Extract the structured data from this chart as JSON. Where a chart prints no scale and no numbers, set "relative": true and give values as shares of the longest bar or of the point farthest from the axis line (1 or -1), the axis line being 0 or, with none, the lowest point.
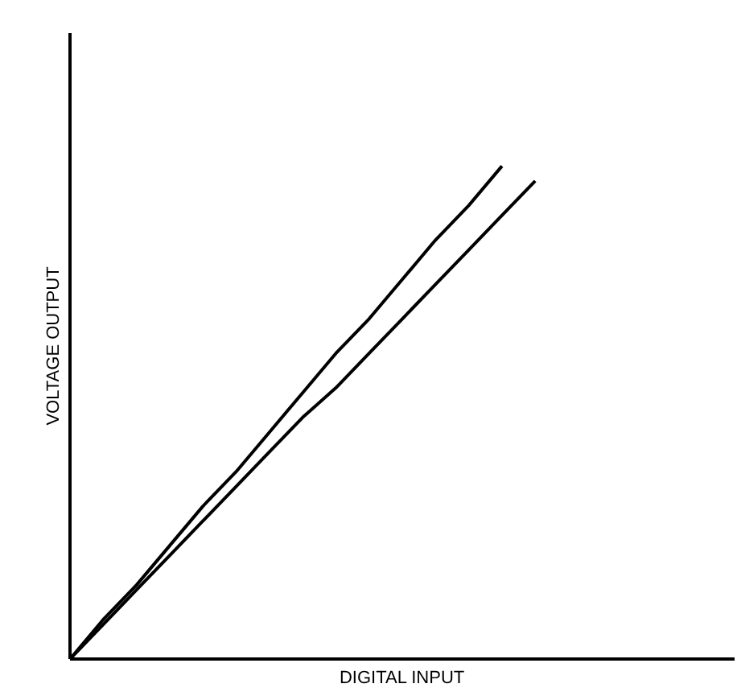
{
  "chart_data": {
    "type": "line",
    "relative": true,
    "xlabel": "DIGITAL INPUT",
    "ylabel": "VOLTAGE OUTPUT",
    "categories": [
      null,
      null,
      null,
      null,
      null,
      null,
      null,
      null,
      null,
      null,
      null,
      null,
      null,
      null,
      null,
      null,
      null,
      null,
      null,
      null,
      null
    ],
    "series": [
      {
        "color": "#000000",
        "values": [
          0,
          0.08,
          0.15,
          0.23,
          0.31,
          0.38,
          0.46,
          0.54,
          0.62,
          0.69,
          0.77,
          0.85,
          0.92,
          1.0,
          null,
          null,
          null,
          null,
          null,
          null,
          null
        ]
      },
      {
        "color": "#000000",
        "values": [
          0,
          0.07,
          0.14,
          0.21,
          0.28,
          0.35,
          0.42,
          0.49,
          0.55,
          0.62,
          0.69,
          0.76,
          0.83,
          0.9,
          0.97,
          null,
          null,
          null,
          null,
          null,
          null
        ]
      }
    ]
  }
}
